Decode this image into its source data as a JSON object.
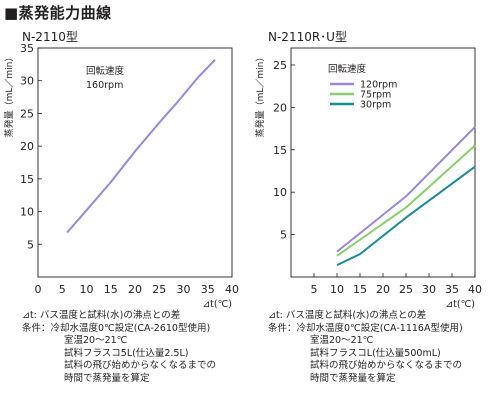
{
  "header": {
    "title": "■蒸発能力曲線"
  },
  "colors": {
    "purple": "#9b87d6",
    "green": "#8ccd6e",
    "teal": "#1e8a93",
    "axis": "#231f20"
  },
  "chart_data": [
    {
      "type": "line",
      "title": "N-2110型",
      "xlabel": "⊿t(℃)",
      "ylabel": "蒸発量（mL／min）",
      "xlim": [
        0,
        40
      ],
      "ylim": [
        0,
        35
      ],
      "xticks": [
        "0",
        "5",
        "10",
        "15",
        "20",
        "25",
        "30",
        "35",
        "40"
      ],
      "yticks": [
        "5",
        "10",
        "15",
        "20",
        "25",
        "30",
        "35"
      ],
      "legend_title": "回転速度",
      "legend_text": "160rpm",
      "series": [
        {
          "name": "160rpm",
          "color": "#9b87d6",
          "x": [
            6,
            10,
            15,
            20,
            25,
            28.5,
            33,
            36.5
          ],
          "y": [
            6.8,
            10.2,
            14.5,
            19.2,
            23.6,
            26.5,
            30.5,
            33.2
          ]
        }
      ],
      "notes": {
        "line1": "⊿t: バス温度と試料(水)の沸点との差",
        "line2": "条件：冷却水温度0℃設定(CA-2610型使用)",
        "line3": "室温20～21℃",
        "line4": "試料フラスコ5L(仕込量2.5L)",
        "line5": "試料の飛び始めからなくなるまでの",
        "line6": "時間で蒸発量を算定"
      }
    },
    {
      "type": "line",
      "title": "N-2110R･U型",
      "xlabel": "⊿t(℃)",
      "ylabel": "蒸発量（mL／min）",
      "xlim": [
        0,
        40
      ],
      "ylim": [
        0,
        27
      ],
      "xticks": [
        "5",
        "10",
        "15",
        "20",
        "25",
        "30",
        "35",
        "40"
      ],
      "yticks": [
        "5",
        "10",
        "15",
        "20",
        "25"
      ],
      "legend_title": "回転速度",
      "series": [
        {
          "name": "120rpm",
          "color": "#9b87d6",
          "x": [
            10,
            25,
            40
          ],
          "y": [
            3.0,
            9.5,
            17.7
          ]
        },
        {
          "name": "75rpm",
          "color": "#8ccd6e",
          "x": [
            10,
            25,
            40
          ],
          "y": [
            2.5,
            8.2,
            15.5
          ]
        },
        {
          "name": "30rpm",
          "color": "#1e8a93",
          "x": [
            10,
            15,
            25,
            40
          ],
          "y": [
            1.4,
            2.7,
            7.0,
            13.0
          ]
        }
      ],
      "notes": {
        "line1": "⊿t: バス温度と試料(水)の沸点との差",
        "line2": "条件：冷却水温度0℃設定(CA-1116A型使用)",
        "line3": "室温20～21℃",
        "line4": "試料フラスコL(仕込量500mL)",
        "line5": "試料の飛び始めからなくなるまでの",
        "line6": "時間で蒸発量を算定"
      }
    }
  ]
}
